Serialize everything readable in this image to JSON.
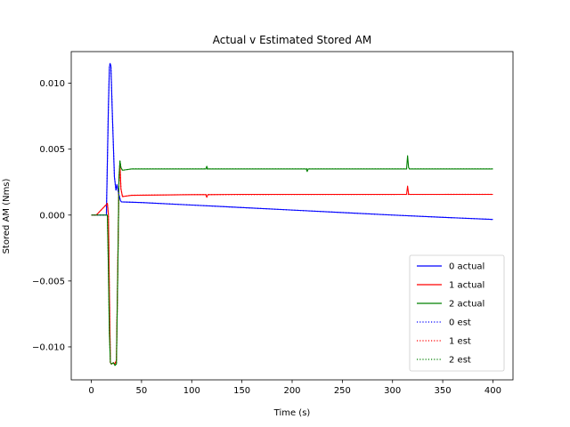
{
  "chart_data": {
    "type": "line",
    "title": "Actual v Estimated Stored AM",
    "xlabel": "Time (s)",
    "ylabel": "Stored AM (Nms)",
    "xlim": [
      -20,
      420
    ],
    "ylim": [
      -0.0125,
      0.0124
    ],
    "xticks": [
      0,
      50,
      100,
      150,
      200,
      250,
      300,
      350,
      400
    ],
    "xtick_labels": [
      "0",
      "50",
      "100",
      "150",
      "200",
      "250",
      "300",
      "350",
      "400"
    ],
    "yticks": [
      -0.01,
      -0.005,
      0.0,
      0.005,
      0.01
    ],
    "ytick_labels": [
      "−0.010",
      "−0.005",
      "0.000",
      "0.005",
      "0.010"
    ],
    "grid": false,
    "legend_position": "lower-right",
    "series": [
      {
        "name": "0 actual",
        "color": "#0000ff",
        "style": "solid",
        "x": [
          0,
          5,
          10,
          15,
          17,
          18,
          18.7,
          19.5,
          21,
          23,
          24.5,
          25.5,
          27,
          29,
          30,
          50,
          100,
          150,
          200,
          250,
          300,
          350,
          400
        ],
        "y": [
          0.0,
          0.0,
          0.0,
          0.0,
          0.0082,
          0.0112,
          0.0115,
          0.0113,
          0.0075,
          0.0029,
          0.0019,
          0.0023,
          0.0017,
          0.0011,
          0.001,
          0.00095,
          0.00076,
          0.00057,
          0.00038,
          0.00019,
          0.0,
          -0.00017,
          -0.00033
        ]
      },
      {
        "name": "1 actual",
        "color": "#ff0000",
        "style": "solid",
        "x": [
          0,
          5,
          15,
          16,
          17,
          18,
          19,
          20,
          22,
          23.5,
          25,
          26.5,
          27.5,
          28.5,
          29.5,
          31,
          40,
          100,
          114,
          115,
          116,
          117,
          150,
          200,
          250,
          300,
          314,
          315,
          316,
          317,
          350,
          400
        ],
        "y": [
          0.0,
          0.0,
          0.0008,
          0.0009,
          0.0,
          -0.006,
          -0.0112,
          -0.0113,
          -0.0112,
          -0.0113,
          -0.011,
          -0.003,
          0.0025,
          0.0038,
          0.002,
          0.0014,
          0.0015,
          0.00155,
          0.00155,
          0.00135,
          0.00155,
          0.00155,
          0.00157,
          0.00157,
          0.00157,
          0.00157,
          0.00157,
          0.0022,
          0.0016,
          0.00157,
          0.00157,
          0.00157
        ]
      },
      {
        "name": "2 actual",
        "color": "#008000",
        "style": "solid",
        "x": [
          0,
          5,
          15,
          16,
          17,
          18,
          19,
          20,
          22,
          23.5,
          25,
          26.5,
          27.5,
          28.5,
          29.5,
          31,
          40,
          100,
          114,
          115,
          116,
          117,
          150,
          200,
          214,
          215,
          216,
          217,
          250,
          300,
          314,
          315,
          316,
          317,
          350,
          400
        ],
        "y": [
          0.0,
          0.0,
          0.0,
          0.0,
          -0.004,
          -0.009,
          -0.0112,
          -0.0113,
          -0.0112,
          -0.0114,
          -0.0113,
          -0.0035,
          0.0028,
          0.0041,
          0.0036,
          0.0034,
          0.0035,
          0.0035,
          0.0035,
          0.0037,
          0.0035,
          0.0035,
          0.0035,
          0.0035,
          0.0035,
          0.0033,
          0.0035,
          0.0035,
          0.0035,
          0.0035,
          0.0035,
          0.0045,
          0.0036,
          0.0035,
          0.0035,
          0.0035
        ]
      },
      {
        "name": "0 est",
        "color": "#0000ff",
        "style": "dotted",
        "x": [
          0,
          5,
          10,
          15,
          17,
          18,
          18.7,
          19.5,
          21,
          23,
          24.5,
          25.5,
          27,
          29,
          30,
          50,
          100,
          150,
          200,
          250,
          300,
          350,
          400
        ],
        "y": [
          0.0,
          0.0,
          0.0,
          0.0,
          0.0082,
          0.0112,
          0.0115,
          0.0113,
          0.0075,
          0.0029,
          0.0019,
          0.0023,
          0.0017,
          0.0011,
          0.001,
          0.00095,
          0.00076,
          0.00057,
          0.00038,
          0.00019,
          0.0,
          -0.00017,
          -0.00033
        ]
      },
      {
        "name": "1 est",
        "color": "#ff0000",
        "style": "dotted",
        "x": [
          0,
          5,
          15,
          16,
          17,
          18,
          19,
          20,
          22,
          23.5,
          25,
          26.5,
          27.5,
          28.5,
          29.5,
          31,
          40,
          100,
          400
        ],
        "y": [
          0.0,
          0.0,
          0.0008,
          0.0009,
          0.0,
          -0.006,
          -0.0112,
          -0.0113,
          -0.0112,
          -0.0113,
          -0.011,
          -0.003,
          0.0025,
          0.0038,
          0.002,
          0.0014,
          0.0015,
          0.00155,
          0.00157
        ]
      },
      {
        "name": "2 est",
        "color": "#008000",
        "style": "dotted",
        "x": [
          0,
          5,
          15,
          16,
          17,
          18,
          19,
          20,
          22,
          23.5,
          25,
          26.5,
          27.5,
          28.5,
          29.5,
          31,
          40,
          100,
          400
        ],
        "y": [
          0.0,
          0.0,
          0.0,
          0.0,
          -0.004,
          -0.009,
          -0.0112,
          -0.0113,
          -0.0112,
          -0.0114,
          -0.0113,
          -0.0035,
          0.0028,
          0.0041,
          0.0036,
          0.0034,
          0.0035,
          0.0035,
          0.0035
        ]
      }
    ]
  }
}
